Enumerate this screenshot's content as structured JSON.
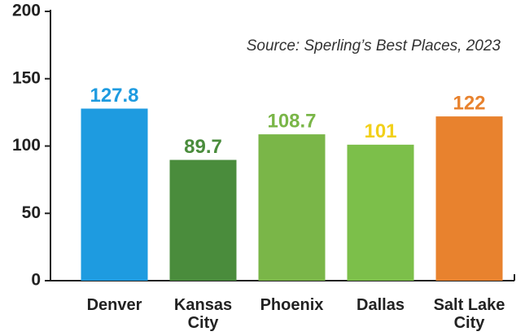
{
  "chart_data": {
    "type": "bar",
    "annotation": "Source: Sperling’s Best Places, 2023",
    "categories": [
      "Denver",
      "Kansas City",
      "Phoenix",
      "Dallas",
      "Salt Lake City"
    ],
    "values": [
      127.8,
      89.7,
      108.7,
      101,
      122
    ],
    "colors": [
      "#1e9be0",
      "#4a8c3c",
      "#7ab648",
      "#7cbf4a",
      "#e8822e"
    ],
    "label_colors": [
      "#1e9be0",
      "#4a8c3c",
      "#7ab648",
      "#f2d01a",
      "#e8822e"
    ],
    "ylim": [
      0,
      200
    ],
    "yticks": [
      0,
      50,
      100,
      150,
      200
    ],
    "grid": false
  }
}
